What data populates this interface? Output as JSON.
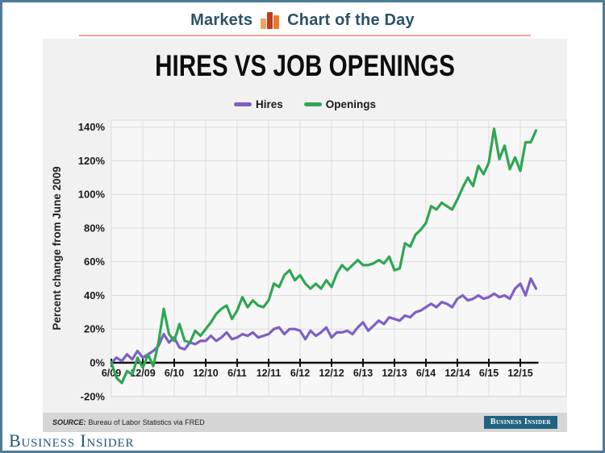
{
  "header": {
    "markets_label": "Markets",
    "chart_of_day_label": "Chart of the Day"
  },
  "card": {
    "title": "HIRES VS JOB OPENINGS",
    "source_bar": {
      "source_label": "SOURCE:",
      "source_text": "Bureau of Labor Statistics via FRED",
      "badge_text": "Business Insider"
    }
  },
  "footer": {
    "logo_text": "Business Insider"
  },
  "colors": {
    "header_text": "#2b5266",
    "header_underline": "#f0a493",
    "badge_bg": "#20637f",
    "hires_line": "#7e5fc6",
    "openings_line": "#2fa653",
    "zero_axis": "#111111",
    "gridline": "#dcdcdc",
    "plot_bg": "#f7f7f7",
    "card_bg": "#f1f1f1"
  },
  "chart_data": {
    "type": "line",
    "title": "HIRES VS JOB OPENINGS",
    "ylabel": "Percent change from June 2009",
    "xlabel": "",
    "x_frequency": "monthly",
    "x_start": "6/2009",
    "x_end": "3/2016",
    "x_tick_labels": [
      "6/09",
      "12/09",
      "6/10",
      "12/10",
      "6/11",
      "12/11",
      "6/12",
      "12/12",
      "6/13",
      "12/13",
      "6/14",
      "12/14",
      "6/15",
      "12/15"
    ],
    "y_ticks": [
      140,
      120,
      100,
      80,
      60,
      40,
      20,
      0,
      -20
    ],
    "y_tick_suffix": "%",
    "ylim": [
      -20,
      140
    ],
    "grid": true,
    "legend_position": "top-center",
    "series": [
      {
        "name": "Hires",
        "color": "#7e5fc6",
        "values": [
          0,
          3,
          1,
          5,
          2,
          7,
          3,
          5,
          7,
          10,
          17,
          12,
          15,
          9,
          8,
          12,
          11,
          13,
          13,
          16,
          13,
          15,
          18,
          14,
          15,
          17,
          16,
          18,
          15,
          16,
          17,
          20,
          21,
          17,
          20,
          20,
          19,
          14,
          19,
          16,
          18,
          21,
          15,
          18,
          18,
          19,
          17,
          21,
          24,
          19,
          22,
          25,
          23,
          27,
          26,
          25,
          28,
          27,
          30,
          31,
          33,
          35,
          33,
          36,
          35,
          33,
          38,
          40,
          37,
          38,
          40,
          38,
          39,
          41,
          39,
          40,
          38,
          44,
          47,
          40,
          50,
          44
        ]
      },
      {
        "name": "Openings",
        "color": "#2fa653",
        "values": [
          0,
          -9,
          -12,
          -5,
          -7,
          3,
          -3,
          5,
          -2,
          12,
          32,
          17,
          13,
          23,
          13,
          12,
          19,
          16,
          20,
          24,
          29,
          32,
          34,
          26,
          31,
          39,
          33,
          37,
          34,
          33,
          37,
          47,
          45,
          52,
          55,
          49,
          52,
          47,
          44,
          47,
          44,
          49,
          45,
          53,
          58,
          55,
          58,
          61,
          58,
          58,
          59,
          61,
          59,
          63,
          55,
          56,
          71,
          69,
          76,
          79,
          83,
          93,
          91,
          95,
          93,
          91,
          97,
          104,
          110,
          105,
          117,
          112,
          119,
          139,
          121,
          129,
          115,
          122,
          114,
          131,
          131,
          138
        ]
      }
    ]
  }
}
